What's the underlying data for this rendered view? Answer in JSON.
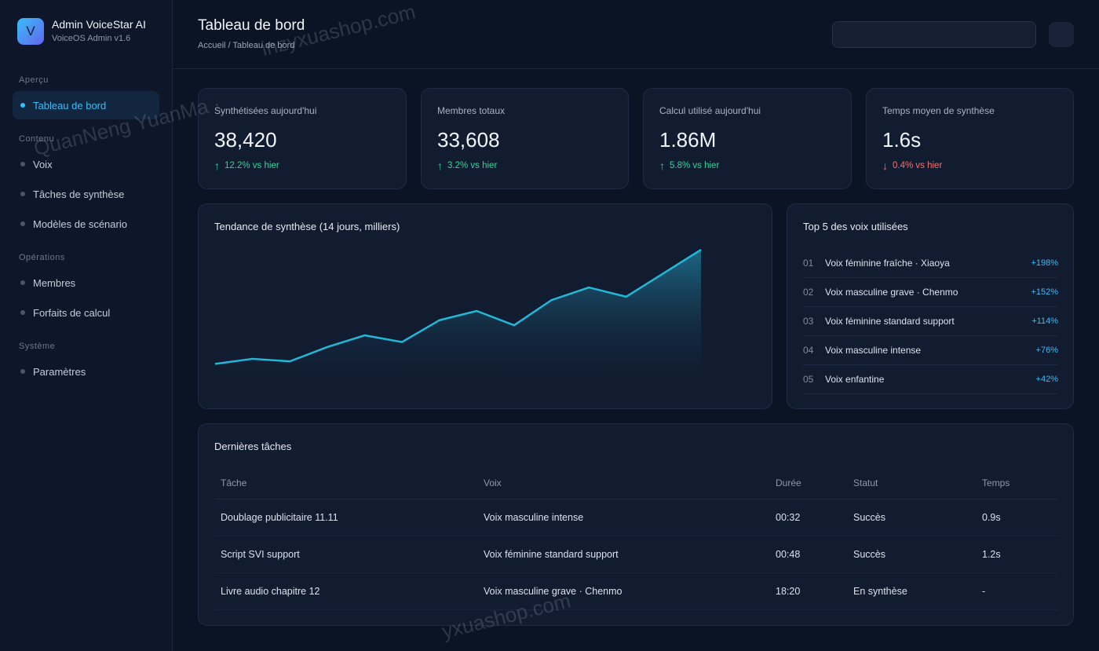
{
  "brand": {
    "logo_letter": "V",
    "title": "Admin VoiceStar AI",
    "subtitle": "VoiceOS Admin v1.6"
  },
  "sidebar": {
    "sections": [
      {
        "label": "Aperçu",
        "items": [
          {
            "label": "Tableau de bord",
            "active": true
          }
        ]
      },
      {
        "label": "Contenu",
        "items": [
          {
            "label": "Voix"
          },
          {
            "label": "Tâches de synthèse"
          },
          {
            "label": "Modèles de scénario"
          }
        ]
      },
      {
        "label": "Opérations",
        "items": [
          {
            "label": "Membres"
          },
          {
            "label": "Forfaits de calcul"
          }
        ]
      },
      {
        "label": "Système",
        "items": [
          {
            "label": "Paramètres"
          }
        ]
      }
    ]
  },
  "header": {
    "title": "Tableau de bord",
    "breadcrumb": "Accueil / Tableau de bord",
    "search_placeholder": ""
  },
  "stats": [
    {
      "label": "Synthétisées aujourd'hui",
      "value": "38,420",
      "delta": "12.2% vs hier",
      "direction": "up",
      "arrow": "↑"
    },
    {
      "label": "Membres totaux",
      "value": "33,608",
      "delta": "3.2% vs hier",
      "direction": "up",
      "arrow": "↑"
    },
    {
      "label": "Calcul utilisé aujourd'hui",
      "value": "1.86M",
      "delta": "5.8% vs hier",
      "direction": "up",
      "arrow": "↑"
    },
    {
      "label": "Temps moyen de synthèse",
      "value": "1.6s",
      "delta": "0.4% vs hier",
      "direction": "down",
      "arrow": "↓"
    }
  ],
  "trend": {
    "title": "Tendance de synthèse (14 jours, milliers)",
    "chart_data": {
      "type": "area",
      "title": "Tendance de synthèse (14 jours, milliers)",
      "x": [
        1,
        2,
        3,
        4,
        5,
        6,
        7,
        8,
        9,
        10,
        11,
        12,
        13,
        14
      ],
      "values": [
        12,
        15,
        13.5,
        22,
        29,
        25,
        38,
        43.5,
        35,
        50,
        57.5,
        52,
        66,
        80
      ],
      "ylim": [
        0,
        80
      ],
      "grid": false,
      "color": "#22b8d8"
    }
  },
  "top_voices": {
    "title": "Top 5 des voix utilisées",
    "items": [
      {
        "rank": "01",
        "name": "Voix féminine fraîche · Xiaoya",
        "pct": "+198%"
      },
      {
        "rank": "02",
        "name": "Voix masculine grave · Chenmo",
        "pct": "+152%"
      },
      {
        "rank": "03",
        "name": "Voix féminine standard support",
        "pct": "+114%"
      },
      {
        "rank": "04",
        "name": "Voix masculine intense",
        "pct": "+76%"
      },
      {
        "rank": "05",
        "name": "Voix enfantine",
        "pct": "+42%"
      }
    ]
  },
  "tasks": {
    "title": "Dernières tâches",
    "columns": [
      "Tâche",
      "Voix",
      "Durée",
      "Statut",
      "Temps"
    ],
    "rows": [
      {
        "task": "Doublage publicitaire 11.11",
        "voice": "Voix masculine intense",
        "duration": "00:32",
        "status": "Succès",
        "status_type": "success",
        "time": "0.9s"
      },
      {
        "task": "Script SVI support",
        "voice": "Voix féminine standard support",
        "duration": "00:48",
        "status": "Succès",
        "status_type": "success",
        "time": "1.2s"
      },
      {
        "task": "Livre audio chapitre 12",
        "voice": "Voix masculine grave · Chenmo",
        "duration": "18:20",
        "status": "En synthèse",
        "status_type": "progress",
        "time": "-"
      }
    ]
  },
  "watermarks": [
    "inzyxuashop.com",
    "QuanNeng YuanMa ·",
    "inzyxuashop.com",
    "yxuashop.com"
  ],
  "colors": {
    "accent": "#38bdf8",
    "up": "#34d399",
    "down": "#f87171",
    "progress": "#fbbf24"
  }
}
